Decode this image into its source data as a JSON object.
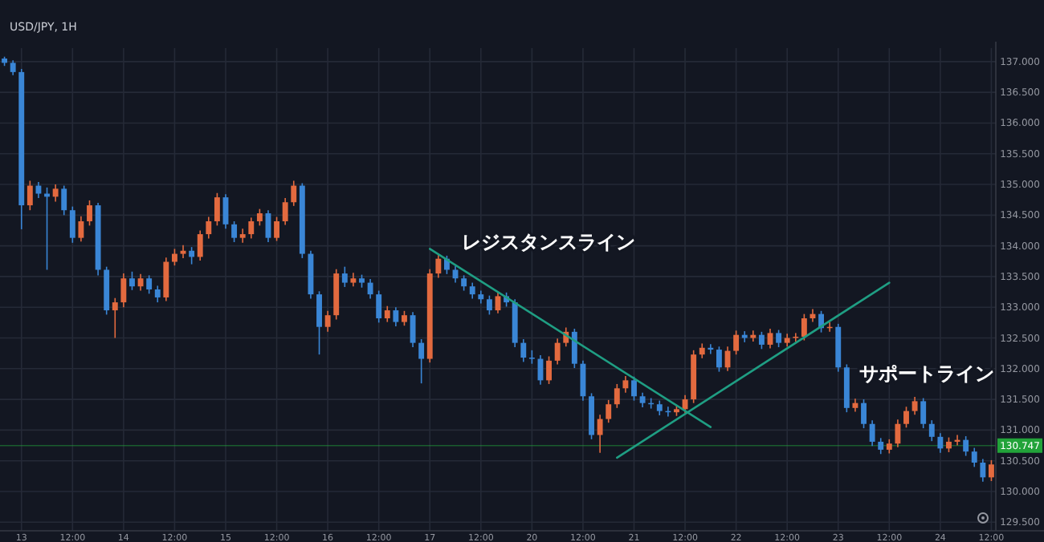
{
  "chart_data": {
    "type": "candlestick",
    "title": "USD/JPY, 1H",
    "categories": [
      null,
      null,
      "13",
      null,
      null,
      null,
      null,
      null,
      "12:00",
      null,
      null,
      null,
      null,
      null,
      "14",
      null,
      null,
      null,
      null,
      null,
      "12:00",
      null,
      null,
      null,
      null,
      null,
      "15",
      null,
      null,
      null,
      null,
      null,
      "12:00",
      null,
      null,
      null,
      null,
      null,
      "16",
      null,
      null,
      null,
      null,
      null,
      "12:00",
      null,
      null,
      null,
      null,
      null,
      "17",
      null,
      null,
      null,
      null,
      null,
      "12:00",
      null,
      null,
      null,
      null,
      null,
      "20",
      null,
      null,
      null,
      null,
      null,
      "12:00",
      null,
      null,
      null,
      null,
      null,
      "21",
      null,
      null,
      null,
      null,
      null,
      "12:00",
      null,
      null,
      null,
      null,
      null,
      "22",
      null,
      null,
      null,
      null,
      null,
      "12:00",
      null,
      null,
      null,
      null,
      null,
      "23",
      null,
      null,
      null,
      null,
      null,
      "12:00",
      null,
      null,
      null,
      null,
      null,
      "24",
      null,
      null,
      null,
      null,
      null,
      "12:00"
    ],
    "series": [
      {
        "ohlc": [
          [
            137.05,
            137.08,
            136.93,
            136.98
          ],
          [
            136.98,
            137.02,
            136.78,
            136.83
          ],
          [
            136.83,
            136.88,
            134.27,
            134.66
          ],
          [
            134.66,
            135.06,
            134.58,
            134.98
          ],
          [
            134.98,
            135.04,
            134.78,
            134.85
          ],
          [
            134.85,
            134.95,
            133.61,
            134.8
          ],
          [
            134.8,
            135.0,
            134.72,
            134.93
          ],
          [
            134.93,
            134.98,
            134.5,
            134.58
          ],
          [
            134.58,
            134.64,
            134.05,
            134.13
          ],
          [
            134.13,
            134.48,
            134.07,
            134.4
          ],
          [
            134.4,
            134.74,
            134.33,
            134.66
          ],
          [
            134.66,
            134.7,
            133.52,
            133.61
          ],
          [
            133.61,
            133.66,
            132.88,
            132.95
          ],
          [
            132.95,
            133.15,
            132.5,
            133.08
          ],
          [
            133.08,
            133.55,
            133.0,
            133.47
          ],
          [
            133.47,
            133.58,
            133.28,
            133.34
          ],
          [
            133.34,
            133.54,
            133.27,
            133.47
          ],
          [
            133.47,
            133.52,
            133.22,
            133.29
          ],
          [
            133.29,
            133.35,
            133.08,
            133.16
          ],
          [
            133.16,
            133.81,
            133.1,
            133.74
          ],
          [
            133.74,
            133.95,
            133.68,
            133.87
          ],
          [
            133.87,
            134.01,
            133.8,
            133.92
          ],
          [
            133.92,
            133.98,
            133.7,
            133.82
          ],
          [
            133.82,
            134.25,
            133.76,
            134.19
          ],
          [
            134.19,
            134.47,
            134.12,
            134.4
          ],
          [
            134.4,
            134.86,
            134.33,
            134.79
          ],
          [
            134.79,
            134.84,
            134.28,
            134.35
          ],
          [
            134.35,
            134.4,
            134.06,
            134.13
          ],
          [
            134.13,
            134.28,
            134.05,
            134.19
          ],
          [
            134.19,
            134.46,
            134.12,
            134.4
          ],
          [
            134.4,
            134.6,
            134.33,
            134.53
          ],
          [
            134.53,
            134.58,
            134.06,
            134.13
          ],
          [
            134.13,
            134.47,
            134.08,
            134.4
          ],
          [
            134.4,
            134.78,
            134.34,
            134.71
          ],
          [
            134.71,
            135.06,
            134.65,
            134.98
          ],
          [
            134.98,
            135.02,
            133.8,
            133.87
          ],
          [
            133.87,
            133.92,
            133.14,
            133.21
          ],
          [
            133.21,
            133.26,
            132.23,
            132.68
          ],
          [
            132.68,
            132.94,
            132.6,
            132.87
          ],
          [
            132.87,
            133.62,
            132.8,
            133.55
          ],
          [
            133.55,
            133.66,
            133.33,
            133.4
          ],
          [
            133.4,
            133.56,
            133.34,
            133.47
          ],
          [
            133.47,
            133.53,
            133.32,
            133.4
          ],
          [
            133.4,
            133.46,
            133.14,
            133.21
          ],
          [
            133.21,
            133.27,
            132.75,
            132.82
          ],
          [
            132.82,
            133.02,
            132.76,
            132.95
          ],
          [
            132.95,
            133.0,
            132.69,
            132.76
          ],
          [
            132.76,
            132.94,
            132.7,
            132.87
          ],
          [
            132.87,
            132.92,
            132.35,
            132.42
          ],
          [
            132.42,
            132.48,
            131.76,
            132.16
          ],
          [
            132.16,
            133.62,
            132.1,
            133.55
          ],
          [
            133.55,
            133.86,
            133.48,
            133.79
          ],
          [
            133.79,
            133.84,
            133.54,
            133.61
          ],
          [
            133.61,
            133.67,
            133.4,
            133.47
          ],
          [
            133.47,
            133.52,
            133.27,
            133.34
          ],
          [
            133.34,
            133.4,
            133.14,
            133.21
          ],
          [
            133.21,
            133.27,
            133.06,
            133.13
          ],
          [
            133.13,
            133.19,
            132.88,
            132.95
          ],
          [
            132.95,
            133.25,
            132.9,
            133.18
          ],
          [
            133.18,
            133.24,
            133.01,
            133.08
          ],
          [
            133.08,
            133.13,
            132.35,
            132.42
          ],
          [
            132.42,
            132.48,
            132.11,
            132.18
          ],
          [
            132.18,
            132.3,
            132.08,
            132.16
          ],
          [
            132.16,
            132.22,
            131.74,
            131.81
          ],
          [
            131.81,
            132.2,
            131.75,
            132.13
          ],
          [
            132.13,
            132.49,
            132.07,
            132.42
          ],
          [
            132.42,
            132.67,
            132.36,
            132.6
          ],
          [
            132.6,
            132.65,
            132.01,
            132.08
          ],
          [
            132.08,
            132.13,
            131.48,
            131.55
          ],
          [
            131.55,
            131.6,
            130.85,
            130.92
          ],
          [
            130.92,
            131.25,
            130.63,
            131.18
          ],
          [
            131.18,
            131.49,
            131.12,
            131.42
          ],
          [
            131.42,
            131.75,
            131.36,
            131.68
          ],
          [
            131.68,
            131.88,
            131.61,
            131.81
          ],
          [
            131.81,
            131.87,
            131.48,
            131.55
          ],
          [
            131.55,
            131.61,
            131.37,
            131.44
          ],
          [
            131.44,
            131.52,
            131.35,
            131.42
          ],
          [
            131.42,
            131.48,
            131.24,
            131.31
          ],
          [
            131.31,
            131.38,
            131.22,
            131.29
          ],
          [
            131.29,
            131.41,
            131.23,
            131.34
          ],
          [
            131.34,
            131.57,
            131.28,
            131.5
          ],
          [
            131.5,
            132.3,
            131.44,
            132.23
          ],
          [
            132.23,
            132.41,
            132.17,
            132.34
          ],
          [
            132.34,
            132.4,
            132.24,
            132.31
          ],
          [
            132.31,
            132.36,
            131.95,
            132.02
          ],
          [
            132.02,
            132.36,
            131.96,
            132.29
          ],
          [
            132.29,
            132.62,
            132.23,
            132.55
          ],
          [
            132.55,
            132.61,
            132.43,
            132.5
          ],
          [
            132.5,
            132.62,
            132.44,
            132.55
          ],
          [
            132.55,
            132.6,
            132.32,
            132.39
          ],
          [
            132.39,
            132.65,
            132.33,
            132.58
          ],
          [
            132.58,
            132.63,
            132.35,
            132.42
          ],
          [
            132.42,
            132.57,
            132.36,
            132.5
          ],
          [
            132.5,
            132.58,
            132.44,
            132.52
          ],
          [
            132.52,
            132.89,
            132.46,
            132.82
          ],
          [
            132.82,
            132.97,
            132.76,
            132.89
          ],
          [
            132.89,
            132.94,
            132.59,
            132.66
          ],
          [
            132.66,
            132.76,
            132.6,
            132.68
          ],
          [
            132.68,
            132.73,
            131.95,
            132.02
          ],
          [
            132.02,
            132.07,
            131.29,
            131.36
          ],
          [
            131.36,
            131.51,
            131.3,
            131.44
          ],
          [
            131.44,
            131.5,
            131.03,
            131.1
          ],
          [
            131.1,
            131.16,
            130.74,
            130.81
          ],
          [
            130.81,
            130.87,
            130.61,
            130.68
          ],
          [
            130.68,
            130.85,
            130.62,
            130.78
          ],
          [
            130.78,
            131.17,
            130.72,
            131.1
          ],
          [
            131.1,
            131.38,
            131.04,
            131.31
          ],
          [
            131.31,
            131.54,
            131.25,
            131.47
          ],
          [
            131.47,
            131.52,
            131.03,
            131.1
          ],
          [
            131.1,
            131.16,
            130.82,
            130.89
          ],
          [
            130.89,
            130.95,
            130.63,
            130.7
          ],
          [
            130.7,
            130.88,
            130.64,
            130.81
          ],
          [
            130.81,
            130.92,
            130.75,
            130.84
          ],
          [
            130.84,
            130.9,
            130.58,
            130.65
          ],
          [
            130.65,
            130.71,
            130.4,
            130.47
          ],
          [
            130.47,
            130.53,
            130.16,
            130.23
          ],
          [
            130.23,
            130.51,
            130.17,
            130.44
          ]
        ],
        "colors": [
          "#3a86d6",
          "#3a86d6",
          "#3a86d6",
          "#e36a3f",
          "#3a86d6",
          "#3a86d6",
          "#e36a3f",
          "#3a86d6",
          "#3a86d6",
          "#e36a3f",
          "#e36a3f",
          "#3a86d6",
          "#3a86d6",
          "#e36a3f",
          "#e36a3f",
          "#3a86d6",
          "#e36a3f",
          "#3a86d6",
          "#3a86d6",
          "#e36a3f",
          "#e36a3f",
          "#e36a3f",
          "#3a86d6",
          "#e36a3f",
          "#e36a3f",
          "#e36a3f",
          "#3a86d6",
          "#3a86d6",
          "#e36a3f",
          "#e36a3f",
          "#e36a3f",
          "#3a86d6",
          "#e36a3f",
          "#e36a3f",
          "#e36a3f",
          "#3a86d6",
          "#3a86d6",
          "#3a86d6",
          "#e36a3f",
          "#e36a3f",
          "#3a86d6",
          "#e36a3f",
          "#3a86d6",
          "#3a86d6",
          "#3a86d6",
          "#e36a3f",
          "#3a86d6",
          "#e36a3f",
          "#3a86d6",
          "#3a86d6",
          "#e36a3f",
          "#e36a3f",
          "#3a86d6",
          "#3a86d6",
          "#3a86d6",
          "#3a86d6",
          "#3a86d6",
          "#3a86d6",
          "#e36a3f",
          "#3a86d6",
          "#3a86d6",
          "#3a86d6",
          "#3a86d6",
          "#3a86d6",
          "#e36a3f",
          "#e36a3f",
          "#e36a3f",
          "#3a86d6",
          "#3a86d6",
          "#3a86d6",
          "#e36a3f",
          "#e36a3f",
          "#e36a3f",
          "#e36a3f",
          "#3a86d6",
          "#3a86d6",
          "#3a86d6",
          "#3a86d6",
          "#3a86d6",
          "#e36a3f",
          "#e36a3f",
          "#e36a3f",
          "#e36a3f",
          "#3a86d6",
          "#3a86d6",
          "#e36a3f",
          "#e36a3f",
          "#3a86d6",
          "#e36a3f",
          "#3a86d6",
          "#e36a3f",
          "#3a86d6",
          "#e36a3f",
          "#e36a3f",
          "#e36a3f",
          "#e36a3f",
          "#3a86d6",
          "#e36a3f",
          "#3a86d6",
          "#3a86d6",
          "#e36a3f",
          "#3a86d6",
          "#3a86d6",
          "#3a86d6",
          "#e36a3f",
          "#e36a3f",
          "#e36a3f",
          "#e36a3f",
          "#3a86d6",
          "#3a86d6",
          "#3a86d6",
          "#e36a3f",
          "#e36a3f",
          "#3a86d6",
          "#3a86d6",
          "#3a86d6",
          "#e36a3f"
        ]
      },
      {
        "type": "line",
        "name": "レジスタンスライン",
        "color": "#1f9e83",
        "values": [
          null,
          null,
          null,
          null,
          null,
          null,
          null,
          null,
          null,
          null,
          null,
          null,
          null,
          null,
          null,
          null,
          null,
          null,
          null,
          null,
          null,
          null,
          null,
          null,
          null,
          null,
          null,
          null,
          null,
          null,
          null,
          null,
          null,
          null,
          null,
          null,
          null,
          null,
          null,
          null,
          null,
          null,
          null,
          null,
          null,
          null,
          null,
          null,
          null,
          null,
          133.95,
          null,
          null,
          null,
          null,
          null,
          null,
          null,
          null,
          null,
          null,
          null,
          null,
          null,
          null,
          null,
          null,
          null,
          null,
          null,
          null,
          null,
          null,
          null,
          null,
          null,
          null,
          null,
          null,
          null,
          null,
          null,
          null,
          131.05,
          null,
          null,
          null,
          null,
          null,
          null,
          null,
          null,
          null,
          null,
          null,
          null,
          null,
          null,
          null,
          null,
          null,
          null,
          null,
          null,
          null,
          null,
          null,
          null,
          null,
          null,
          null,
          null,
          null,
          null,
          null,
          null,
          null
        ]
      },
      {
        "type": "line",
        "name": "サポートライン",
        "color": "#1f9e83",
        "values": [
          null,
          null,
          null,
          null,
          null,
          null,
          null,
          null,
          null,
          null,
          null,
          null,
          null,
          null,
          null,
          null,
          null,
          null,
          null,
          null,
          null,
          null,
          null,
          null,
          null,
          null,
          null,
          null,
          null,
          null,
          null,
          null,
          null,
          null,
          null,
          null,
          null,
          null,
          null,
          null,
          null,
          null,
          null,
          null,
          null,
          null,
          null,
          null,
          null,
          null,
          null,
          null,
          null,
          null,
          null,
          null,
          null,
          null,
          null,
          null,
          null,
          null,
          null,
          null,
          null,
          null,
          null,
          null,
          null,
          null,
          null,
          null,
          130.55,
          null,
          null,
          null,
          null,
          null,
          null,
          null,
          null,
          null,
          null,
          null,
          null,
          null,
          null,
          null,
          null,
          null,
          null,
          null,
          null,
          null,
          null,
          null,
          null,
          null,
          null,
          null,
          null,
          null,
          null,
          null,
          133.4,
          null,
          null,
          null,
          null,
          null,
          null,
          null,
          null,
          null,
          null,
          null,
          null
        ]
      }
    ],
    "ylim": [
      129.36,
      137.22
    ],
    "yticks": [
      {
        "value": 129.5,
        "label": "129.500"
      },
      {
        "value": 130,
        "label": "130.000"
      },
      {
        "value": 130.5,
        "label": "130.500"
      },
      {
        "value": 131,
        "label": "131.000"
      },
      {
        "value": 131.5,
        "label": "131.500"
      },
      {
        "value": 132,
        "label": "132.000"
      },
      {
        "value": 132.5,
        "label": "132.500"
      },
      {
        "value": 133,
        "label": "133.000"
      },
      {
        "value": 133.5,
        "label": "133.500"
      },
      {
        "value": 134,
        "label": "134.000"
      },
      {
        "value": 134.5,
        "label": "134.500"
      },
      {
        "value": 135,
        "label": "135.000"
      },
      {
        "value": 135.5,
        "label": "135.500"
      },
      {
        "value": 136,
        "label": "136.000"
      },
      {
        "value": 136.5,
        "label": "136.500"
      },
      {
        "value": 137,
        "label": "137.000"
      }
    ],
    "ref_lines": [
      {
        "axis": "y",
        "value": 130.747,
        "label": "130.747",
        "color": "#22a33a"
      }
    ],
    "grid": true
  }
}
